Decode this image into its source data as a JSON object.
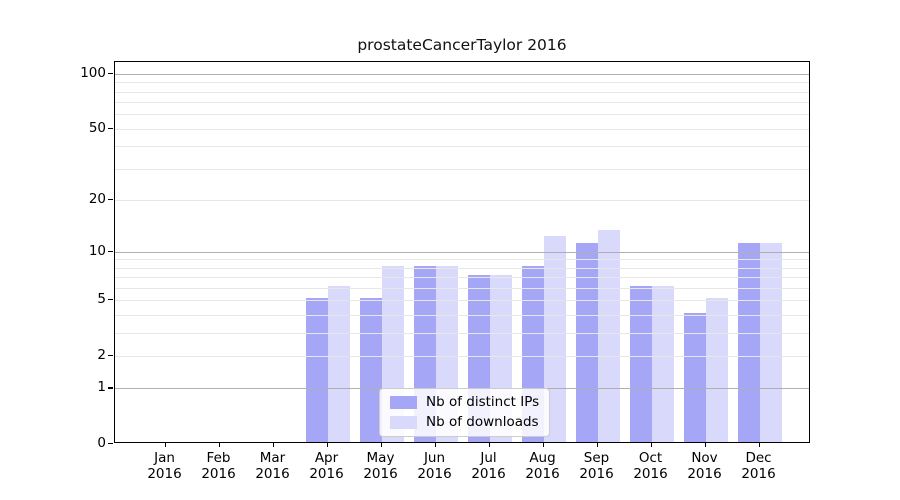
{
  "figure": {
    "title": "prostateCancerTaylor 2016",
    "background": "#ffffff"
  },
  "chart_data": {
    "type": "bar",
    "title": "prostateCancerTaylor 2016",
    "categories": [
      "Jan 2016",
      "Feb 2016",
      "Mar 2016",
      "Apr 2016",
      "May 2016",
      "Jun 2016",
      "Jul 2016",
      "Aug 2016",
      "Sep 2016",
      "Oct 2016",
      "Nov 2016",
      "Dec 2016"
    ],
    "series": [
      {
        "name": "Nb of distinct IPs",
        "color": "#a6a6f6",
        "values": [
          0,
          0,
          0,
          5,
          5,
          8,
          7,
          8,
          11,
          6,
          4,
          11
        ]
      },
      {
        "name": "Nb of downloads",
        "color": "#d9d9fb",
        "values": [
          0,
          0,
          0,
          6,
          8,
          8,
          7,
          12,
          13,
          6,
          5,
          11
        ]
      }
    ],
    "y_axis": {
      "scale": "log1p",
      "tick_values": [
        100,
        50,
        20,
        10,
        5,
        2,
        1,
        0
      ],
      "tick_labels": [
        "100",
        "50",
        "20",
        "10",
        "5",
        "2",
        "1",
        "0"
      ],
      "major_gridlines": [
        1,
        10,
        100
      ],
      "minor_gridlines": [
        2,
        3,
        4,
        5,
        6,
        7,
        8,
        9,
        20,
        30,
        40,
        50,
        60,
        70,
        80,
        90
      ],
      "ylim": [
        0,
        116
      ]
    },
    "xlabel": "",
    "ylabel": "",
    "grid": true,
    "legend": {
      "position": "lower-center",
      "labels": [
        "Nb of distinct IPs",
        "Nb of downloads"
      ]
    },
    "colors": {
      "major_grid": "#b0b0b0",
      "minor_grid": "#e7e7e7",
      "spine": "#000000",
      "text": "#000000"
    }
  }
}
